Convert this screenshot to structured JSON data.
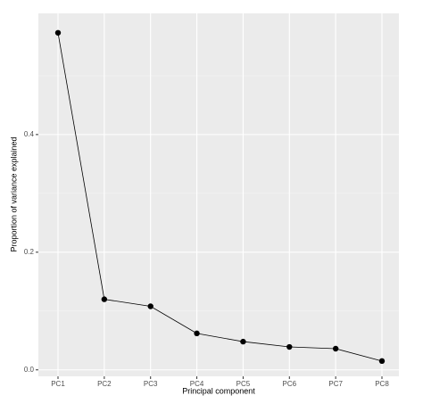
{
  "chart_data": {
    "type": "line",
    "x_label": "Principal component",
    "y_label": "Proportion of variance explained",
    "categories": [
      "PC1",
      "PC2",
      "PC3",
      "PC4",
      "PC5",
      "PC6",
      "PC7",
      "PC8"
    ],
    "values": [
      0.573,
      0.12,
      0.108,
      0.062,
      0.048,
      0.039,
      0.036,
      0.015
    ],
    "color": "#000000",
    "ylim": [
      -0.011,
      0.606
    ],
    "yticks": [
      {
        "value": 0,
        "label": "0.0"
      },
      0.2,
      0.4
    ],
    "grid": true
  }
}
